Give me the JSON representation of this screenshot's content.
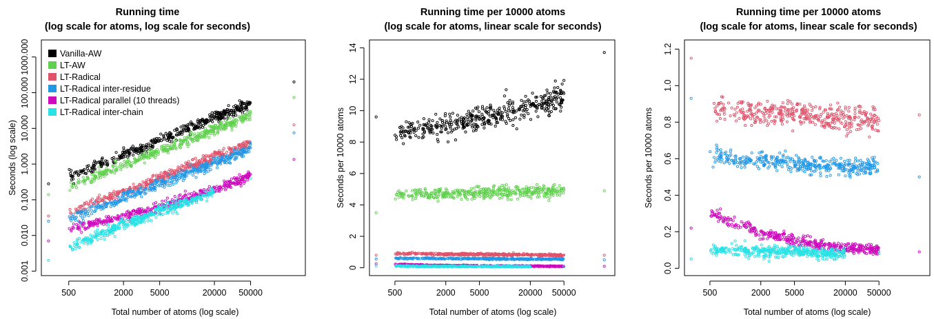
{
  "chart_data": [
    {
      "type": "scatter",
      "title_line1": "Running time",
      "title_line2": "(log scale for atoms, log scale for seconds)",
      "xlabel": "Total number of atoms (log scale)",
      "ylabel": "Seconds (log scale)",
      "x_scale": "log",
      "y_scale": "log",
      "xlim": [
        250,
        200000
      ],
      "ylim": [
        0.00075,
        3000
      ],
      "x_ticks": [
        500,
        2000,
        5000,
        20000,
        50000
      ],
      "x_tick_labels": [
        "500",
        "2000",
        "5000",
        "20000",
        "50000"
      ],
      "y_ticks": [
        0.001,
        0.01,
        0.1,
        1,
        10,
        100,
        1000
      ],
      "y_tick_labels": [
        "0.001",
        "0.010",
        "0.100",
        "1.000",
        "10.000",
        "100.000",
        "1000.000"
      ],
      "grid": false,
      "legend_position": "top-left",
      "legend": [
        {
          "name": "Vanilla-AW",
          "color": "#000000"
        },
        {
          "name": "LT-AW",
          "color": "#61D04F"
        },
        {
          "name": "LT-Radical",
          "color": "#DF536B"
        },
        {
          "name": "LT-Radical inter-residue",
          "color": "#2297E6"
        },
        {
          "name": "LT-Radical parallel (10 threads)",
          "color": "#CD0BBC"
        },
        {
          "name": "LT-Radical inter-chain",
          "color": "#28E2E5"
        }
      ],
      "series": [
        {
          "name": "Vanilla-AW",
          "color": "#000000",
          "x": [
            300,
            500,
            1000,
            2000,
            5000,
            10000,
            20000,
            50000,
            150000
          ],
          "y": [
            0.28,
            0.45,
            0.9,
            1.85,
            4.8,
            10,
            21,
            55,
            200
          ]
        },
        {
          "name": "LT-AW",
          "color": "#61D04F",
          "x": [
            300,
            500,
            1000,
            2000,
            5000,
            10000,
            20000,
            50000,
            150000
          ],
          "y": [
            0.14,
            0.24,
            0.48,
            0.95,
            2.4,
            4.8,
            9.7,
            25,
            73
          ]
        },
        {
          "name": "LT-Radical",
          "color": "#DF536B",
          "x": [
            300,
            500,
            1000,
            2000,
            5000,
            10000,
            20000,
            50000,
            150000
          ],
          "y": [
            0.035,
            0.045,
            0.09,
            0.17,
            0.42,
            0.84,
            1.65,
            4.1,
            12.5
          ]
        },
        {
          "name": "LT-Radical inter-residue",
          "color": "#2297E6",
          "x": [
            300,
            500,
            1000,
            2000,
            5000,
            10000,
            20000,
            50000,
            150000
          ],
          "y": [
            0.025,
            0.03,
            0.06,
            0.12,
            0.29,
            0.57,
            1.1,
            2.8,
            7.5
          ]
        },
        {
          "name": "LT-Radical parallel (10 threads)",
          "color": "#CD0BBC",
          "x": [
            300,
            500,
            1000,
            2000,
            5000,
            10000,
            20000,
            50000,
            150000
          ],
          "y": [
            0.007,
            0.016,
            0.022,
            0.034,
            0.065,
            0.11,
            0.2,
            0.48,
            1.35
          ]
        },
        {
          "name": "LT-Radical inter-chain",
          "color": "#28E2E5",
          "x": [
            300,
            500,
            1000,
            2000,
            5000,
            10000,
            20000,
            50000
          ],
          "y": [
            0.002,
            0.005,
            0.01,
            0.022,
            0.05,
            0.09,
            0.18,
            0.4
          ]
        }
      ]
    },
    {
      "type": "scatter",
      "title_line1": "Running time per 10000 atoms",
      "title_line2": "(log scale for atoms, linear scale for seconds)",
      "xlabel": "Total number of atoms (log scale)",
      "ylabel": "Seconds per 10000 atoms",
      "x_scale": "log",
      "y_scale": "linear",
      "xlim": [
        250,
        200000
      ],
      "ylim": [
        -0.5,
        14.5
      ],
      "x_ticks": [
        500,
        2000,
        5000,
        20000,
        50000
      ],
      "x_tick_labels": [
        "500",
        "2000",
        "5000",
        "20000",
        "50000"
      ],
      "y_ticks": [
        0,
        2,
        4,
        6,
        8,
        10,
        12,
        14
      ],
      "y_tick_labels": [
        "0",
        "2",
        "4",
        "6",
        "8",
        "10",
        "12",
        "14"
      ],
      "grid": false,
      "series": [
        {
          "color": "#000000",
          "x": [
            300,
            500,
            1000,
            2000,
            5000,
            10000,
            20000,
            50000,
            150000
          ],
          "y": [
            9.6,
            8.6,
            8.8,
            9.0,
            9.5,
            9.9,
            10.3,
            11.0,
            13.7
          ]
        },
        {
          "color": "#61D04F",
          "x": [
            300,
            500,
            1000,
            2000,
            5000,
            10000,
            20000,
            50000,
            150000
          ],
          "y": [
            3.5,
            4.6,
            4.7,
            4.7,
            4.75,
            4.8,
            4.85,
            4.9,
            4.9
          ]
        },
        {
          "color": "#DF536B",
          "x": [
            300,
            500,
            1000,
            2000,
            5000,
            10000,
            20000,
            50000,
            150000
          ],
          "y": [
            0.8,
            0.9,
            0.9,
            0.85,
            0.85,
            0.83,
            0.82,
            0.8,
            0.8
          ]
        },
        {
          "color": "#2297E6",
          "x": [
            300,
            500,
            1000,
            2000,
            5000,
            10000,
            20000,
            50000,
            150000
          ],
          "y": [
            0.55,
            0.6,
            0.6,
            0.58,
            0.57,
            0.56,
            0.55,
            0.55,
            0.5
          ]
        },
        {
          "color": "#CD0BBC",
          "x": [
            300,
            500,
            1000,
            2000,
            5000,
            10000,
            20000,
            50000,
            150000
          ],
          "y": [
            0.25,
            0.22,
            0.18,
            0.15,
            0.12,
            0.11,
            0.1,
            0.09,
            0.09
          ]
        },
        {
          "color": "#28E2E5",
          "x": [
            300,
            500,
            1000,
            2000,
            5000,
            10000,
            20000,
            50000
          ],
          "y": [
            0.1,
            0.1,
            0.09,
            0.09,
            0.08,
            0.08,
            0.08,
            0.08
          ]
        }
      ]
    },
    {
      "type": "scatter",
      "title_line1": "Running time per 10000 atoms",
      "title_line2": "(log scale for atoms, linear scale for seconds)",
      "xlabel": "Total number of atoms (log scale)",
      "ylabel": "Seconds per 10000 atoms",
      "x_scale": "log",
      "y_scale": "linear",
      "xlim": [
        250,
        200000
      ],
      "ylim": [
        -0.04,
        1.25
      ],
      "x_ticks": [
        500,
        2000,
        5000,
        20000,
        50000
      ],
      "x_tick_labels": [
        "500",
        "2000",
        "5000",
        "20000",
        "50000"
      ],
      "y_ticks": [
        0.0,
        0.2,
        0.4,
        0.6,
        0.8,
        1.0,
        1.2
      ],
      "y_tick_labels": [
        "0.0",
        "0.2",
        "0.4",
        "0.6",
        "0.8",
        "1.0",
        "1.2"
      ],
      "grid": false,
      "series": [
        {
          "color": "#DF536B",
          "x": [
            300,
            500,
            1000,
            2000,
            5000,
            10000,
            20000,
            50000,
            150000
          ],
          "y": [
            1.15,
            0.88,
            0.86,
            0.85,
            0.84,
            0.83,
            0.82,
            0.81,
            0.84
          ]
        },
        {
          "color": "#2297E6",
          "x": [
            300,
            500,
            1000,
            2000,
            5000,
            10000,
            20000,
            50000,
            150000
          ],
          "y": [
            0.93,
            0.62,
            0.6,
            0.59,
            0.57,
            0.56,
            0.55,
            0.55,
            0.5
          ]
        },
        {
          "color": "#CD0BBC",
          "x": [
            300,
            500,
            1000,
            2000,
            5000,
            10000,
            20000,
            50000,
            150000
          ],
          "y": [
            0.22,
            0.3,
            0.24,
            0.19,
            0.15,
            0.13,
            0.11,
            0.1,
            0.09
          ]
        },
        {
          "color": "#28E2E5",
          "x": [
            300,
            500,
            1000,
            2000,
            5000,
            10000,
            20000,
            50000
          ],
          "y": [
            0.05,
            0.1,
            0.1,
            0.09,
            0.09,
            0.08,
            0.08,
            0.08
          ]
        }
      ]
    }
  ]
}
